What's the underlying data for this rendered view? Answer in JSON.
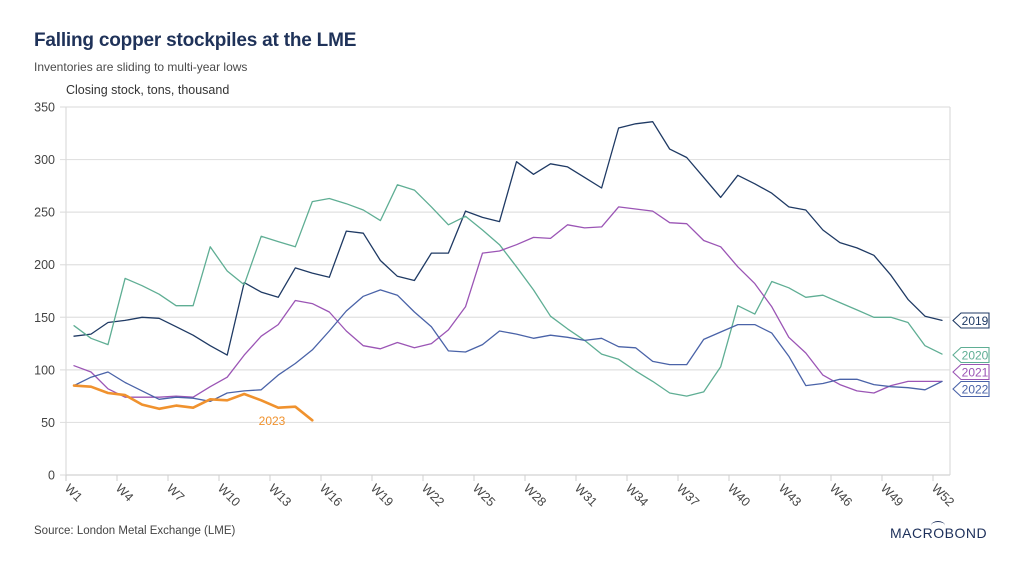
{
  "header": {
    "title": "Falling copper stockpiles at the LME",
    "subtitle": "Inventories are sliding to multi-year lows",
    "axis_caption": "Closing stock, tons, thousand"
  },
  "footer": {
    "source": "Source: London Metal Exchange (LME)",
    "logo": "MACROBOND"
  },
  "chart_data": {
    "type": "line",
    "title": "Falling copper stockpiles at the LME",
    "subtitle": "Inventories are sliding to multi-year lows",
    "xlabel": "",
    "ylabel": "Closing stock, tons, thousand",
    "ylim": [
      0,
      350
    ],
    "yticks": [
      0,
      50,
      100,
      150,
      200,
      250,
      300,
      350
    ],
    "grid": true,
    "x": [
      "W1",
      "W2",
      "W3",
      "W4",
      "W5",
      "W6",
      "W7",
      "W8",
      "W9",
      "W10",
      "W11",
      "W12",
      "W13",
      "W14",
      "W15",
      "W16",
      "W17",
      "W18",
      "W19",
      "W20",
      "W21",
      "W22",
      "W23",
      "W24",
      "W25",
      "W26",
      "W27",
      "W28",
      "W29",
      "W30",
      "W31",
      "W32",
      "W33",
      "W34",
      "W35",
      "W36",
      "W37",
      "W38",
      "W39",
      "W40",
      "W41",
      "W42",
      "W43",
      "W44",
      "W45",
      "W46",
      "W47",
      "W48",
      "W49",
      "W50",
      "W51",
      "W52"
    ],
    "xtick_labels": [
      "W1",
      "W4",
      "W7",
      "W10",
      "W13",
      "W16",
      "W19",
      "W22",
      "W25",
      "W28",
      "W31",
      "W34",
      "W37",
      "W40",
      "W43",
      "W46",
      "W49",
      "W52"
    ],
    "legend": "end-of-line labels (right)",
    "series": [
      {
        "name": "2019",
        "color": "#1f3a64",
        "values": [
          132,
          134,
          145,
          147,
          150,
          149,
          141,
          133,
          123,
          114,
          183,
          174,
          169,
          197,
          192,
          188,
          232,
          230,
          204,
          189,
          185,
          211,
          211,
          251,
          245,
          241,
          298,
          286,
          296,
          293,
          283,
          273,
          330,
          334,
          336,
          310,
          302,
          283,
          264,
          285,
          277,
          268,
          255,
          252,
          233,
          221,
          216,
          209,
          190,
          167,
          151,
          147
        ]
      },
      {
        "name": "2020",
        "color": "#5fae94",
        "values": [
          142,
          130,
          124,
          187,
          180,
          172,
          161,
          161,
          217,
          194,
          181,
          227,
          222,
          217,
          260,
          263,
          258,
          252,
          242,
          276,
          271,
          255,
          238,
          246,
          233,
          219,
          198,
          176,
          151,
          139,
          128,
          115,
          110,
          99,
          89,
          78,
          75,
          79,
          103,
          161,
          153,
          184,
          178,
          169,
          171,
          164,
          157,
          150,
          150,
          145,
          123,
          115
        ]
      },
      {
        "name": "2021",
        "color": "#9b55b5",
        "values": [
          104,
          98,
          82,
          74,
          74,
          74,
          75,
          74,
          84,
          93,
          114,
          132,
          143,
          166,
          163,
          155,
          137,
          123,
          120,
          126,
          121,
          125,
          138,
          160,
          211,
          213,
          219,
          226,
          225,
          238,
          235,
          236,
          255,
          253,
          251,
          240,
          239,
          223,
          217,
          198,
          182,
          160,
          131,
          116,
          95,
          86,
          80,
          78,
          85,
          89,
          89,
          89
        ]
      },
      {
        "name": "2022",
        "color": "#4a63a8",
        "values": [
          85,
          93,
          98,
          88,
          80,
          72,
          74,
          73,
          70,
          78,
          80,
          81,
          95,
          106,
          119,
          137,
          156,
          170,
          176,
          171,
          155,
          141,
          118,
          117,
          124,
          137,
          134,
          130,
          133,
          131,
          128,
          130,
          122,
          121,
          108,
          105,
          105,
          129,
          136,
          143,
          143,
          135,
          113,
          85,
          87,
          91,
          91,
          86,
          84,
          83,
          81,
          89
        ]
      },
      {
        "name": "2023",
        "color": "#f0922e",
        "values": [
          85,
          84,
          78,
          76,
          67,
          63,
          66,
          64,
          72,
          71,
          77,
          71,
          64,
          65,
          52
        ],
        "inline_label": "2023"
      }
    ]
  }
}
